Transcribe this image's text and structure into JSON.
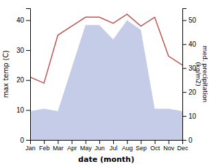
{
  "chart_data": {
    "type": "line",
    "x_label": "date (month)",
    "y_label": "max temp (C)",
    "y2_label": "med. precipitation\n(kg/m2)",
    "categories": [
      "Jan",
      "Feb",
      "Mar",
      "Apr",
      "May",
      "Jun",
      "Jul",
      "Aug",
      "Sep",
      "Oct",
      "Nov",
      "Dec"
    ],
    "series": [
      {
        "type": "area",
        "axis": "y2",
        "color": "#c5cce8",
        "values": [
          12,
          13,
          12,
          30,
          48,
          48,
          42,
          50,
          46,
          13,
          13,
          12
        ]
      },
      {
        "type": "line",
        "color": "#c0504d",
        "values": [
          21,
          19,
          35,
          38,
          41,
          41,
          39,
          42,
          38,
          41,
          28,
          25
        ]
      }
    ],
    "ylim": [
      0,
      44
    ],
    "yticks": [
      0,
      10,
      20,
      30,
      40
    ],
    "y2lim": [
      0,
      55
    ],
    "y2ticks": [
      0,
      10,
      20,
      30,
      40,
      50
    ],
    "grid": false
  }
}
